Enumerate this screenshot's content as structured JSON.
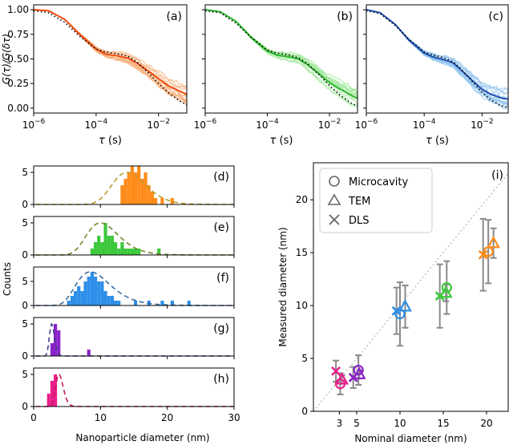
{
  "chart_data": [
    {
      "id": "a",
      "type": "line",
      "panel_label": "(a)",
      "xscale": "log",
      "xlim": [
        1e-06,
        0.08
      ],
      "ylim": [
        -0.05,
        1.05
      ],
      "xticks": [
        1e-06,
        0.0001,
        0.01
      ],
      "xticklabels": [
        "10^-6",
        "10^-4",
        "10^-2"
      ],
      "yticks": [
        0.0,
        0.25,
        0.5,
        0.75,
        1.0
      ],
      "yticklabels": [
        "0.00",
        "0.25",
        "0.50",
        "0.75",
        "1.00"
      ],
      "xlabel": "τ  (s)",
      "ylabel": "G(τ)/G(δτ)",
      "color": "#f04a0c",
      "light_color": "#f9b07c",
      "traces": "many individual normalized autocorrelation traces (light)",
      "x": [
        1e-06,
        3e-06,
        1e-05,
        3e-05,
        0.0001,
        0.0002,
        0.0005,
        0.001,
        0.002,
        0.005,
        0.01,
        0.02,
        0.05,
        0.08
      ],
      "series": [
        {
          "style": "solid-mean",
          "values": [
            1.0,
            0.99,
            0.9,
            0.75,
            0.6,
            0.55,
            0.53,
            0.51,
            0.46,
            0.37,
            0.3,
            0.23,
            0.17,
            0.14
          ]
        },
        {
          "style": "dotted-fit",
          "values": [
            0.99,
            0.97,
            0.87,
            0.73,
            0.6,
            0.57,
            0.55,
            0.53,
            0.47,
            0.35,
            0.25,
            0.16,
            0.07,
            0.03
          ]
        }
      ]
    },
    {
      "id": "b",
      "type": "line",
      "panel_label": "(b)",
      "xscale": "log",
      "xlim": [
        1e-06,
        0.08
      ],
      "ylim": [
        -0.05,
        1.05
      ],
      "xticks": [
        1e-06,
        0.0001,
        0.01
      ],
      "xticklabels": [
        "10^-6",
        "10^-4",
        "10^-2"
      ],
      "yticks": [
        0.0,
        0.25,
        0.5,
        0.75,
        1.0
      ],
      "xlabel": "τ  (s)",
      "color": "#2bb52b",
      "light_color": "#9fe79a",
      "traces": "many individual normalized autocorrelation traces (light)",
      "x": [
        1e-06,
        3e-06,
        1e-05,
        3e-05,
        0.0001,
        0.0002,
        0.0005,
        0.001,
        0.002,
        0.005,
        0.01,
        0.02,
        0.05,
        0.08
      ],
      "series": [
        {
          "style": "solid-mean",
          "values": [
            1.0,
            0.98,
            0.88,
            0.72,
            0.58,
            0.54,
            0.52,
            0.5,
            0.44,
            0.34,
            0.26,
            0.2,
            0.13,
            0.1
          ]
        },
        {
          "style": "dotted-fit",
          "values": [
            0.99,
            0.97,
            0.86,
            0.72,
            0.59,
            0.56,
            0.54,
            0.51,
            0.45,
            0.33,
            0.23,
            0.14,
            0.05,
            0.02
          ]
        }
      ]
    },
    {
      "id": "c",
      "type": "line",
      "panel_label": "(c)",
      "xscale": "log",
      "xlim": [
        1e-06,
        0.08
      ],
      "ylim": [
        -0.05,
        1.05
      ],
      "xticks": [
        1e-06,
        0.0001,
        0.01
      ],
      "xticklabels": [
        "10^-6",
        "10^-4",
        "10^-2"
      ],
      "yticks": [
        0.0,
        0.25,
        0.5,
        0.75,
        1.0
      ],
      "xlabel": "τ  (s)",
      "color": "#1f4fb0",
      "light_color": "#8fc3ef",
      "traces": "many individual normalized autocorrelation traces (light)",
      "x": [
        1e-06,
        3e-06,
        1e-05,
        3e-05,
        0.0001,
        0.0002,
        0.0005,
        0.001,
        0.002,
        0.005,
        0.01,
        0.02,
        0.05,
        0.08
      ],
      "series": [
        {
          "style": "solid-mean",
          "values": [
            1.0,
            0.97,
            0.85,
            0.69,
            0.56,
            0.52,
            0.49,
            0.46,
            0.38,
            0.27,
            0.19,
            0.14,
            0.1,
            0.09
          ]
        },
        {
          "style": "dotted-fit",
          "values": [
            0.99,
            0.96,
            0.84,
            0.7,
            0.57,
            0.54,
            0.51,
            0.47,
            0.39,
            0.26,
            0.16,
            0.08,
            0.02,
            0.01
          ]
        }
      ]
    },
    {
      "id": "d",
      "type": "bar",
      "panel_label": "(d)",
      "xlim": [
        0,
        30
      ],
      "ylim": [
        0,
        6
      ],
      "yticks": [
        0,
        5
      ],
      "bar_color": "#ff8c1a",
      "fit_color": "#b89a2c",
      "bars": [
        [
          13.0,
          3
        ],
        [
          13.5,
          4
        ],
        [
          14.0,
          5
        ],
        [
          14.5,
          6
        ],
        [
          15.0,
          5
        ],
        [
          15.5,
          6
        ],
        [
          16.0,
          4
        ],
        [
          16.5,
          5
        ],
        [
          17.0,
          3
        ],
        [
          17.5,
          2
        ],
        [
          18.0,
          1
        ],
        [
          19.0,
          1
        ],
        [
          20.5,
          1
        ]
      ],
      "fit": {
        "type": "lognormal",
        "peak": 14.0,
        "sigma": 0.18,
        "amplitude": 5.0
      }
    },
    {
      "id": "e",
      "type": "bar",
      "panel_label": "(e)",
      "xlim": [
        0,
        30
      ],
      "ylim": [
        0,
        6
      ],
      "yticks": [
        0,
        5
      ],
      "bar_color": "#3cc83c",
      "fit_color": "#708c2c",
      "bars": [
        [
          8.5,
          1
        ],
        [
          9.0,
          2
        ],
        [
          9.5,
          3
        ],
        [
          10.0,
          2
        ],
        [
          10.5,
          5
        ],
        [
          11.0,
          3
        ],
        [
          11.5,
          3
        ],
        [
          12.0,
          2
        ],
        [
          12.5,
          1
        ],
        [
          13.0,
          2
        ],
        [
          13.5,
          1
        ],
        [
          14.0,
          1
        ],
        [
          14.5,
          1
        ],
        [
          15.0,
          1
        ],
        [
          15.5,
          1
        ],
        [
          18.5,
          1
        ]
      ],
      "fit": {
        "type": "lognormal",
        "peak": 10.0,
        "sigma": 0.24,
        "amplitude": 5.0
      }
    },
    {
      "id": "f",
      "type": "bar",
      "panel_label": "(f)",
      "xlim": [
        0,
        30
      ],
      "ylim": [
        0,
        8
      ],
      "yticks": [
        0,
        5
      ],
      "bar_color": "#2d8fe8",
      "fit_color": "#3a6fa0",
      "bars": [
        [
          5.0,
          1
        ],
        [
          5.5,
          2
        ],
        [
          6.0,
          3
        ],
        [
          6.5,
          4
        ],
        [
          7.0,
          3
        ],
        [
          7.5,
          5
        ],
        [
          8.0,
          6
        ],
        [
          8.5,
          7
        ],
        [
          9.0,
          6
        ],
        [
          9.5,
          5
        ],
        [
          10.0,
          5
        ],
        [
          10.5,
          3
        ],
        [
          11.0,
          2
        ],
        [
          11.5,
          2
        ],
        [
          12.0,
          1
        ],
        [
          12.5,
          1
        ],
        [
          15.0,
          1
        ],
        [
          17.0,
          1
        ],
        [
          19.0,
          1
        ],
        [
          20.5,
          1
        ],
        [
          23.0,
          1
        ]
      ],
      "fit": {
        "type": "lognormal",
        "peak": 8.5,
        "sigma": 0.3,
        "amplitude": 7.0
      }
    },
    {
      "id": "g",
      "type": "bar",
      "panel_label": "(g)",
      "xlim": [
        0,
        30
      ],
      "ylim": [
        0,
        6
      ],
      "yticks": [
        0,
        5
      ],
      "bar_color": "#8a22c9",
      "fit_color": "#3f3f8a",
      "bars": [
        [
          2.5,
          2
        ],
        [
          3.0,
          5
        ],
        [
          3.5,
          4
        ],
        [
          8.0,
          1
        ]
      ],
      "fit": {
        "type": "lognormal",
        "peak": 2.7,
        "sigma": 0.14,
        "amplitude": 5.0
      }
    },
    {
      "id": "h",
      "type": "bar",
      "panel_label": "(h)",
      "xlim": [
        0,
        30
      ],
      "ylim": [
        0,
        6
      ],
      "yticks": [
        0,
        5
      ],
      "bar_color": "#e91e8c",
      "fit_color": "#c2185b",
      "bars": [
        [
          2.0,
          2
        ],
        [
          2.5,
          4
        ],
        [
          3.0,
          5
        ]
      ],
      "fit": {
        "type": "lognormal",
        "peak": 3.8,
        "sigma": 0.15,
        "amplitude": 5.0
      }
    },
    {
      "id": "i",
      "type": "scatter",
      "panel_label": "(i)",
      "xlim": [
        0,
        22.5
      ],
      "ylim": [
        0,
        23.5
      ],
      "xticks": [
        3,
        5,
        10,
        15,
        20
      ],
      "xticklabels": [
        "3",
        "5",
        "10",
        "15",
        "20"
      ],
      "yticks": [
        0,
        5,
        10,
        15,
        20
      ],
      "yticklabels": [
        "0",
        "5",
        "10",
        "15",
        "20"
      ],
      "xlabel": "Nominal diameter (nm)",
      "ylabel": "Measured diameter (nm)",
      "diagonal": "y = x reference (dotted grey)",
      "legend": {
        "position": "top-left",
        "entries": [
          {
            "marker": "circle",
            "label": "Microcavity"
          },
          {
            "marker": "triangle",
            "label": "TEM"
          },
          {
            "marker": "cross",
            "label": "DLS"
          }
        ]
      },
      "groups": [
        {
          "nominal": 3,
          "color": "#e91e8c",
          "points": [
            {
              "marker": "cross",
              "x": 2.6,
              "y": 3.8,
              "err": 1.0
            },
            {
              "marker": "circle",
              "x": 3.1,
              "y": 2.6,
              "err": 1.0
            },
            {
              "marker": "triangle",
              "x": 3.3,
              "y": 3.0,
              "err": 0.4
            }
          ]
        },
        {
          "nominal": 5,
          "color": "#8a22c9",
          "points": [
            {
              "marker": "cross",
              "x": 4.6,
              "y": 3.2,
              "err": 1.0
            },
            {
              "marker": "circle",
              "x": 5.2,
              "y": 3.9,
              "err": 1.4
            },
            {
              "marker": "triangle",
              "x": 5.3,
              "y": 3.5,
              "err": 0.4
            }
          ]
        },
        {
          "nominal": 10,
          "color": "#2d8fe8",
          "points": [
            {
              "marker": "cross",
              "x": 9.6,
              "y": 9.5,
              "err": 2.2
            },
            {
              "marker": "circle",
              "x": 10.0,
              "y": 9.2,
              "err": 3.0
            },
            {
              "marker": "triangle",
              "x": 10.6,
              "y": 9.9,
              "err": 2.0
            }
          ]
        },
        {
          "nominal": 15,
          "color": "#3cc83c",
          "points": [
            {
              "marker": "cross",
              "x": 14.6,
              "y": 10.9,
              "err": 3.0
            },
            {
              "marker": "circle",
              "x": 15.4,
              "y": 11.7,
              "err": 2.5
            },
            {
              "marker": "triangle",
              "x": 15.3,
              "y": 11.2,
              "err": 0.8
            }
          ]
        },
        {
          "nominal": 20,
          "color": "#ff8c1a",
          "points": [
            {
              "marker": "cross",
              "x": 19.6,
              "y": 14.8,
              "err": 3.4
            },
            {
              "marker": "circle",
              "x": 20.2,
              "y": 15.1,
              "err": 3.0
            },
            {
              "marker": "triangle",
              "x": 20.8,
              "y": 15.9,
              "err": 1.4
            }
          ]
        }
      ]
    }
  ],
  "shared_labels": {
    "hist_ylabel": "Counts",
    "hist_xlabel": "Nanoparticle diameter (nm)",
    "hist_xticklabels": [
      "0",
      "10",
      "20",
      "30"
    ],
    "hist_yticklabels": [
      "0",
      "5"
    ]
  }
}
